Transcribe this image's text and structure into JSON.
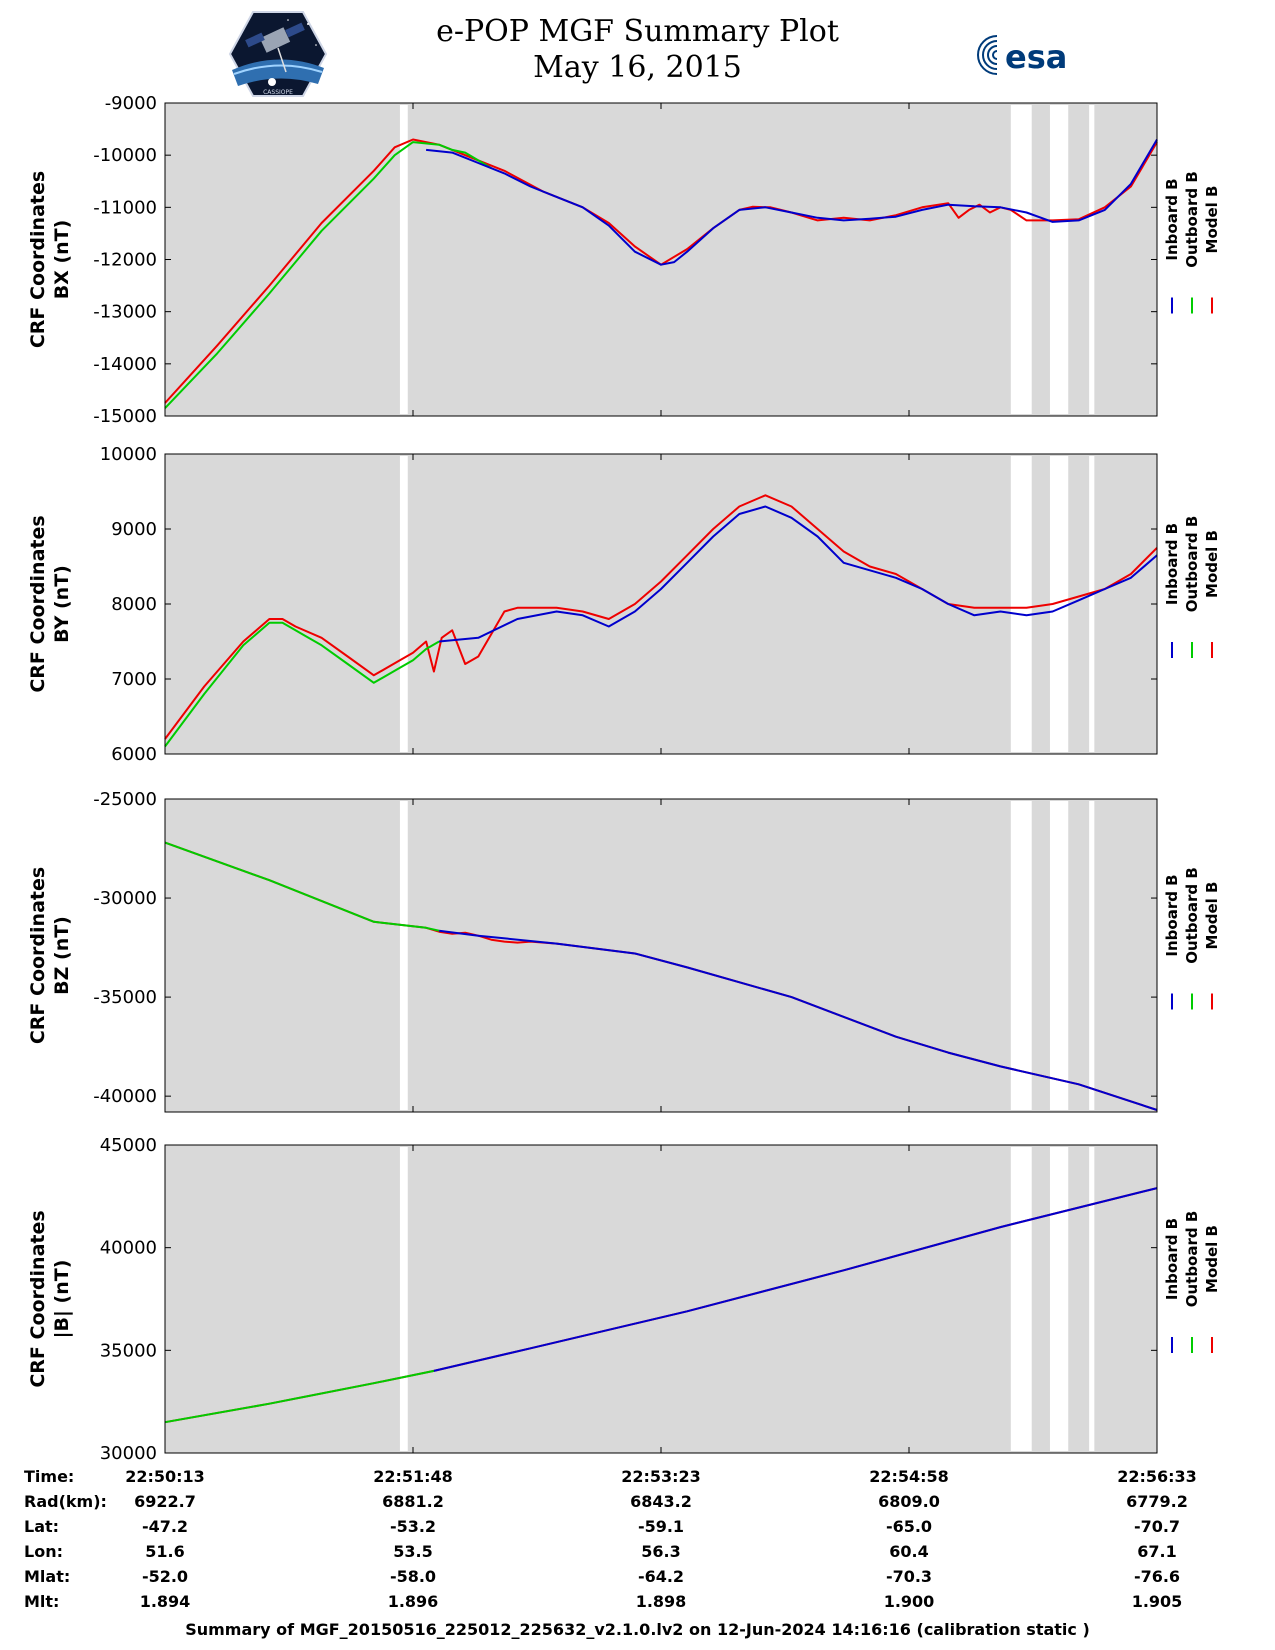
{
  "header": {
    "title_line1": "e-POP MGF Summary Plot",
    "title_line2": "May 16, 2015",
    "logo_right_text": "esa"
  },
  "colors": {
    "inboard": "#0000cc",
    "outboard": "#00cc00",
    "model": "#ee0000",
    "panel_bg": "#d9d9d9",
    "gap": "#ffffff"
  },
  "legend": [
    "Inboard B",
    "Outboard B",
    "Model B"
  ],
  "time_ticks": [
    "22:50:13",
    "22:51:48",
    "22:53:23",
    "22:54:58",
    "22:56:33"
  ],
  "gaps_seconds": [
    [
      90,
      93
    ],
    [
      324,
      332
    ],
    [
      339,
      346
    ],
    [
      354,
      356
    ]
  ],
  "chart_data": [
    {
      "type": "line",
      "title": "BX",
      "ylabel_line1": "CRF Coordinates",
      "ylabel_line2": "BX (nT)",
      "ylim": [
        -15000,
        -9000
      ],
      "xlim_seconds": [
        0,
        380
      ],
      "yticks": [
        -15000,
        -14000,
        -13000,
        -12000,
        -11000,
        -10000,
        -9000
      ],
      "ytick_labels": [
        "-15000",
        "-14000",
        "-13000",
        "-12000",
        "-11000",
        "-10000",
        "-9000"
      ],
      "series": [
        {
          "name": "Model B",
          "x": [
            0,
            20,
            40,
            60,
            80,
            88,
            95,
            105,
            110,
            115,
            120,
            130,
            145,
            160,
            170,
            180,
            190,
            200,
            210,
            220,
            225,
            232,
            240,
            250,
            260,
            270,
            280,
            290,
            300,
            304,
            308,
            312,
            316,
            320,
            324,
            330,
            340,
            350,
            360,
            370,
            380
          ],
          "y": [
            -14750,
            -13650,
            -12500,
            -11300,
            -10300,
            -9850,
            -9700,
            -9800,
            -9900,
            -10000,
            -10100,
            -10300,
            -10700,
            -11000,
            -11300,
            -11750,
            -12100,
            -11800,
            -11400,
            -11050,
            -10990,
            -11000,
            -11100,
            -11250,
            -11200,
            -11250,
            -11150,
            -11000,
            -10920,
            -11200,
            -11050,
            -10950,
            -11100,
            -11000,
            -11050,
            -11250,
            -11250,
            -11230,
            -11000,
            -10600,
            -9750
          ]
        },
        {
          "name": "Inboard B",
          "x": [
            100,
            110,
            120,
            130,
            140,
            150,
            160,
            170,
            180,
            190,
            195,
            200,
            210,
            220,
            230,
            240,
            250,
            260,
            270,
            280,
            290,
            300,
            310,
            320,
            330,
            340,
            350,
            360,
            370,
            380
          ],
          "y": [
            -9900,
            -9950,
            -10150,
            -10350,
            -10600,
            -10800,
            -11000,
            -11350,
            -11850,
            -12100,
            -12050,
            -11850,
            -11400,
            -11050,
            -11000,
            -11100,
            -11200,
            -11250,
            -11220,
            -11180,
            -11050,
            -10950,
            -10980,
            -11000,
            -11100,
            -11280,
            -11250,
            -11050,
            -10550,
            -9700
          ]
        },
        {
          "name": "Outboard B",
          "x": [
            0,
            20,
            40,
            60,
            80,
            88,
            95,
            105,
            110,
            115,
            120,
            125
          ],
          "y": [
            -14850,
            -13800,
            -12650,
            -11450,
            -10450,
            -10000,
            -9750,
            -9800,
            -9900,
            -9950,
            -10100,
            -10250
          ]
        }
      ]
    },
    {
      "type": "line",
      "title": "BY",
      "ylabel_line1": "CRF Coordinates",
      "ylabel_line2": "BY (nT)",
      "ylim": [
        6000,
        10000
      ],
      "xlim_seconds": [
        0,
        380
      ],
      "yticks": [
        6000,
        7000,
        8000,
        9000,
        10000
      ],
      "ytick_labels": [
        "6000",
        "7000",
        "8000",
        "9000",
        "10000"
      ],
      "series": [
        {
          "name": "Model B",
          "x": [
            0,
            15,
            30,
            40,
            45,
            50,
            60,
            70,
            80,
            90,
            95,
            100,
            103,
            106,
            110,
            115,
            120,
            130,
            135,
            150,
            160,
            170,
            180,
            190,
            200,
            210,
            220,
            230,
            240,
            250,
            260,
            270,
            280,
            290,
            300,
            310,
            320,
            330,
            340,
            350,
            360,
            370,
            380
          ],
          "y": [
            6200,
            6900,
            7500,
            7800,
            7800,
            7700,
            7550,
            7300,
            7050,
            7250,
            7350,
            7500,
            7100,
            7550,
            7650,
            7200,
            7300,
            7900,
            7950,
            7950,
            7900,
            7800,
            8000,
            8300,
            8650,
            9000,
            9300,
            9450,
            9300,
            9000,
            8700,
            8500,
            8400,
            8200,
            8000,
            7950,
            7950,
            7950,
            8000,
            8100,
            8200,
            8400,
            8750
          ]
        },
        {
          "name": "Inboard B",
          "x": [
            105,
            120,
            135,
            150,
            160,
            170,
            180,
            190,
            200,
            210,
            220,
            230,
            240,
            250,
            260,
            270,
            280,
            290,
            300,
            310,
            320,
            330,
            340,
            350,
            360,
            370,
            380
          ],
          "y": [
            7500,
            7550,
            7800,
            7900,
            7850,
            7700,
            7900,
            8200,
            8550,
            8900,
            9200,
            9300,
            9150,
            8900,
            8550,
            8450,
            8350,
            8200,
            8000,
            7850,
            7900,
            7850,
            7900,
            8050,
            8200,
            8350,
            8650
          ]
        },
        {
          "name": "Outboard B",
          "x": [
            0,
            15,
            30,
            40,
            45,
            50,
            60,
            70,
            80,
            90,
            95,
            100,
            105
          ],
          "y": [
            6100,
            6800,
            7450,
            7750,
            7750,
            7650,
            7450,
            7200,
            6950,
            7150,
            7250,
            7400,
            7500
          ]
        }
      ]
    },
    {
      "type": "line",
      "title": "BZ",
      "ylabel_line1": "CRF Coordinates",
      "ylabel_line2": "BZ (nT)",
      "ylim": [
        -40800,
        -25000
      ],
      "xlim_seconds": [
        0,
        380
      ],
      "yticks": [
        -40000,
        -35000,
        -30000,
        -25000
      ],
      "ytick_labels": [
        "-40000",
        "-35000",
        "-30000",
        "-25000"
      ],
      "series": [
        {
          "name": "Model B",
          "x": [
            0,
            40,
            80,
            100,
            105,
            110,
            115,
            120,
            125,
            130,
            135,
            140,
            150,
            180,
            200,
            240,
            280,
            300,
            320,
            350,
            380
          ],
          "y": [
            -27200,
            -29100,
            -31200,
            -31500,
            -31700,
            -31800,
            -31750,
            -31900,
            -32100,
            -32200,
            -32250,
            -32200,
            -32300,
            -32800,
            -33500,
            -35000,
            -37000,
            -37800,
            -38500,
            -39400,
            -40700
          ]
        },
        {
          "name": "Inboard B",
          "x": [
            105,
            120,
            150,
            180,
            200,
            240,
            280,
            300,
            320,
            350,
            380
          ],
          "y": [
            -31650,
            -31900,
            -32300,
            -32800,
            -33500,
            -35000,
            -37000,
            -37800,
            -38500,
            -39400,
            -40700
          ]
        },
        {
          "name": "Outboard B",
          "x": [
            0,
            40,
            80,
            100,
            105
          ],
          "y": [
            -27200,
            -29100,
            -31200,
            -31500,
            -31650
          ]
        }
      ]
    },
    {
      "type": "line",
      "title": "|B|",
      "ylabel_line1": "CRF Coordinates",
      "ylabel_line2": "|B| (nT)",
      "ylim": [
        30000,
        45000
      ],
      "xlim_seconds": [
        0,
        380
      ],
      "yticks": [
        30000,
        35000,
        40000,
        45000
      ],
      "ytick_labels": [
        "30000",
        "35000",
        "40000",
        "45000"
      ],
      "series": [
        {
          "name": "Model B",
          "x": [
            0,
            40,
            80,
            103,
            140,
            200,
            260,
            320,
            380
          ],
          "y": [
            31500,
            32400,
            33400,
            34000,
            35100,
            36900,
            38900,
            41000,
            42900
          ]
        },
        {
          "name": "Inboard B",
          "x": [
            103,
            140,
            200,
            260,
            320,
            380
          ],
          "y": [
            34000,
            35100,
            36900,
            38900,
            41000,
            42900
          ]
        },
        {
          "name": "Outboard B",
          "x": [
            0,
            40,
            80,
            103
          ],
          "y": [
            31500,
            32400,
            33400,
            34000
          ]
        }
      ]
    }
  ],
  "footer_rows": [
    {
      "label": "Time:",
      "values": [
        "22:50:13",
        "22:51:48",
        "22:53:23",
        "22:54:58",
        "22:56:33"
      ]
    },
    {
      "label": "Rad(km):",
      "values": [
        "6922.7",
        "6881.2",
        "6843.2",
        "6809.0",
        "6779.2"
      ]
    },
    {
      "label": "Lat:",
      "values": [
        "-47.2",
        "-53.2",
        "-59.1",
        "-65.0",
        "-70.7"
      ]
    },
    {
      "label": "Lon:",
      "values": [
        "51.6",
        "53.5",
        "56.3",
        "60.4",
        "67.1"
      ]
    },
    {
      "label": "Mlat:",
      "values": [
        "-52.0",
        "-58.0",
        "-64.2",
        "-70.3",
        "-76.6"
      ]
    },
    {
      "label": "Mlt:",
      "values": [
        "1.894",
        "1.896",
        "1.898",
        "1.900",
        "1.905"
      ]
    }
  ],
  "footer_caption": "Summary of MGF_20150516_225012_225632_v2.1.0.lv2 on 12-Jun-2024 14:16:16 (calibration static )"
}
